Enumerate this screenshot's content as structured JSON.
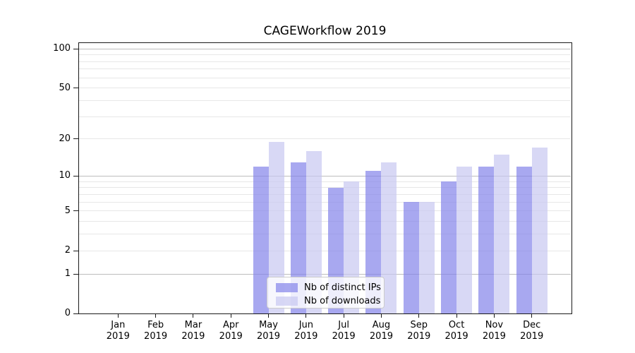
{
  "title": "CAGEWorkflow 2019",
  "chart_data": {
    "type": "bar",
    "title": "CAGEWorkflow 2019",
    "categories": [
      "Jan 2019",
      "Feb 2019",
      "Mar 2019",
      "Apr 2019",
      "May 2019",
      "Jun 2019",
      "Jul 2019",
      "Aug 2019",
      "Sep 2019",
      "Oct 2019",
      "Nov 2019",
      "Dec 2019"
    ],
    "series": [
      {
        "name": "Nb of distinct IPs",
        "values": [
          0,
          0,
          0,
          0,
          12,
          13,
          8,
          11,
          6,
          9,
          12,
          12
        ],
        "base_color": "#8383ea",
        "apparent_color": "#a8a8f0",
        "alpha": 0.7
      },
      {
        "name": "Nb of downloads",
        "values": [
          0,
          0,
          0,
          0,
          19,
          16,
          9,
          13,
          6,
          12,
          15,
          17
        ],
        "base_color": "#c7c7f1",
        "apparent_color": "#d8d8f5",
        "alpha": 0.7
      }
    ],
    "xlabel": "",
    "ylabel": "",
    "y_scale": "symlog (log1p)",
    "y_ticks": [
      0,
      1,
      2,
      5,
      10,
      20,
      50,
      100
    ],
    "y_minor_gridlines": [
      3,
      4,
      6,
      7,
      8,
      9,
      30,
      40,
      60,
      70,
      80,
      90
    ],
    "y_major_gridlines": [
      1,
      10,
      100
    ],
    "ylim": [
      0,
      112
    ],
    "grid": true,
    "legend_position": "lower center",
    "grid_major_color": "#bdbdbd",
    "grid_minor_color": "#e7e7e7",
    "spine_color": "#1a1a1a",
    "text_color": "#000000"
  }
}
